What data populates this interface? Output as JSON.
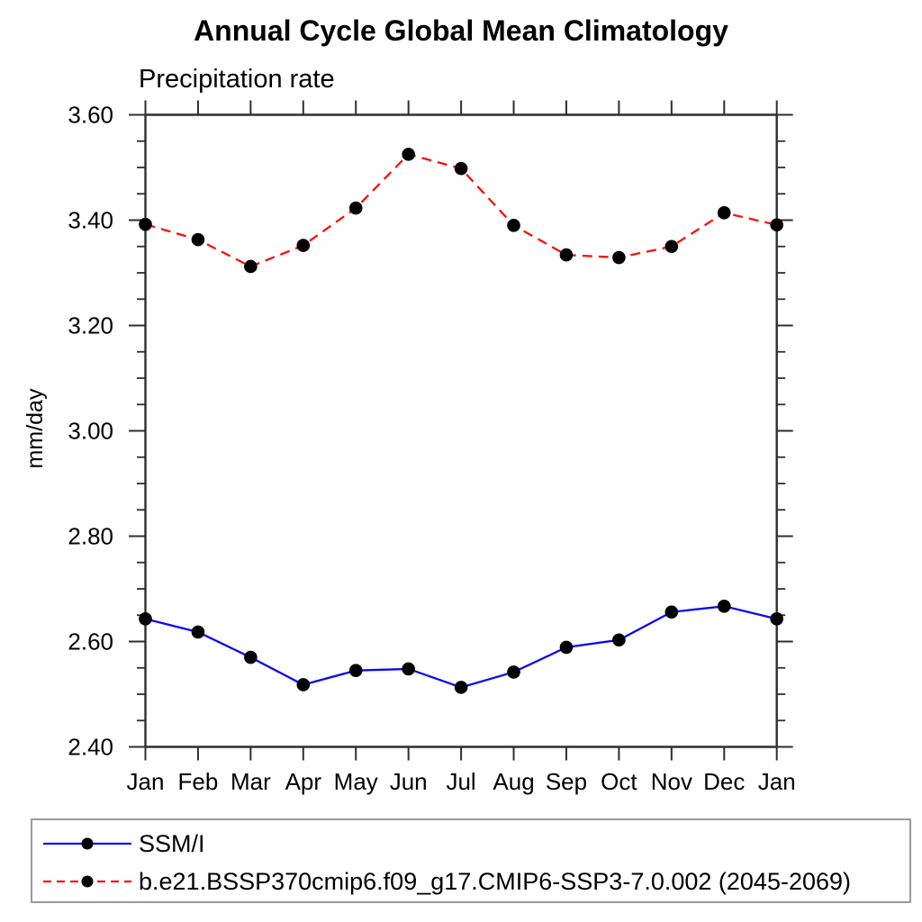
{
  "chart_data": {
    "type": "line",
    "title": "Annual Cycle Global Mean Climatology",
    "subtitle": "Precipitation rate",
    "xlabel": "",
    "ylabel": "mm/day",
    "categories": [
      "Jan",
      "Feb",
      "Mar",
      "Apr",
      "May",
      "Jun",
      "Jul",
      "Aug",
      "Sep",
      "Oct",
      "Nov",
      "Dec",
      "Jan"
    ],
    "ylim": [
      2.4,
      3.6
    ],
    "ytick_labels": [
      "2.40",
      "2.60",
      "2.80",
      "3.00",
      "3.20",
      "3.40",
      "3.60"
    ],
    "ytick_step": 0.2,
    "yminor_step": 0.05,
    "grid": false,
    "legend_position": "bottom-left-box",
    "axis_color": "#2f2f2f",
    "marker": "filled-circle",
    "marker_color": "#000000",
    "series": [
      {
        "name": "SSM/I",
        "color": "#0b0bf0",
        "style": "solid",
        "values": [
          2.643,
          2.618,
          2.57,
          2.518,
          2.545,
          2.548,
          2.513,
          2.542,
          2.589,
          2.603,
          2.656,
          2.667,
          2.643
        ]
      },
      {
        "name": "b.e21.BSSP370cmip6.f09_g17.CMIP6-SSP3-7.0.002 (2045-2069)",
        "color": "#fb0f0c",
        "style": "dashed",
        "values": [
          3.392,
          3.363,
          3.312,
          3.352,
          3.423,
          3.525,
          3.498,
          3.39,
          3.334,
          3.329,
          3.35,
          3.414,
          3.391
        ]
      }
    ]
  }
}
